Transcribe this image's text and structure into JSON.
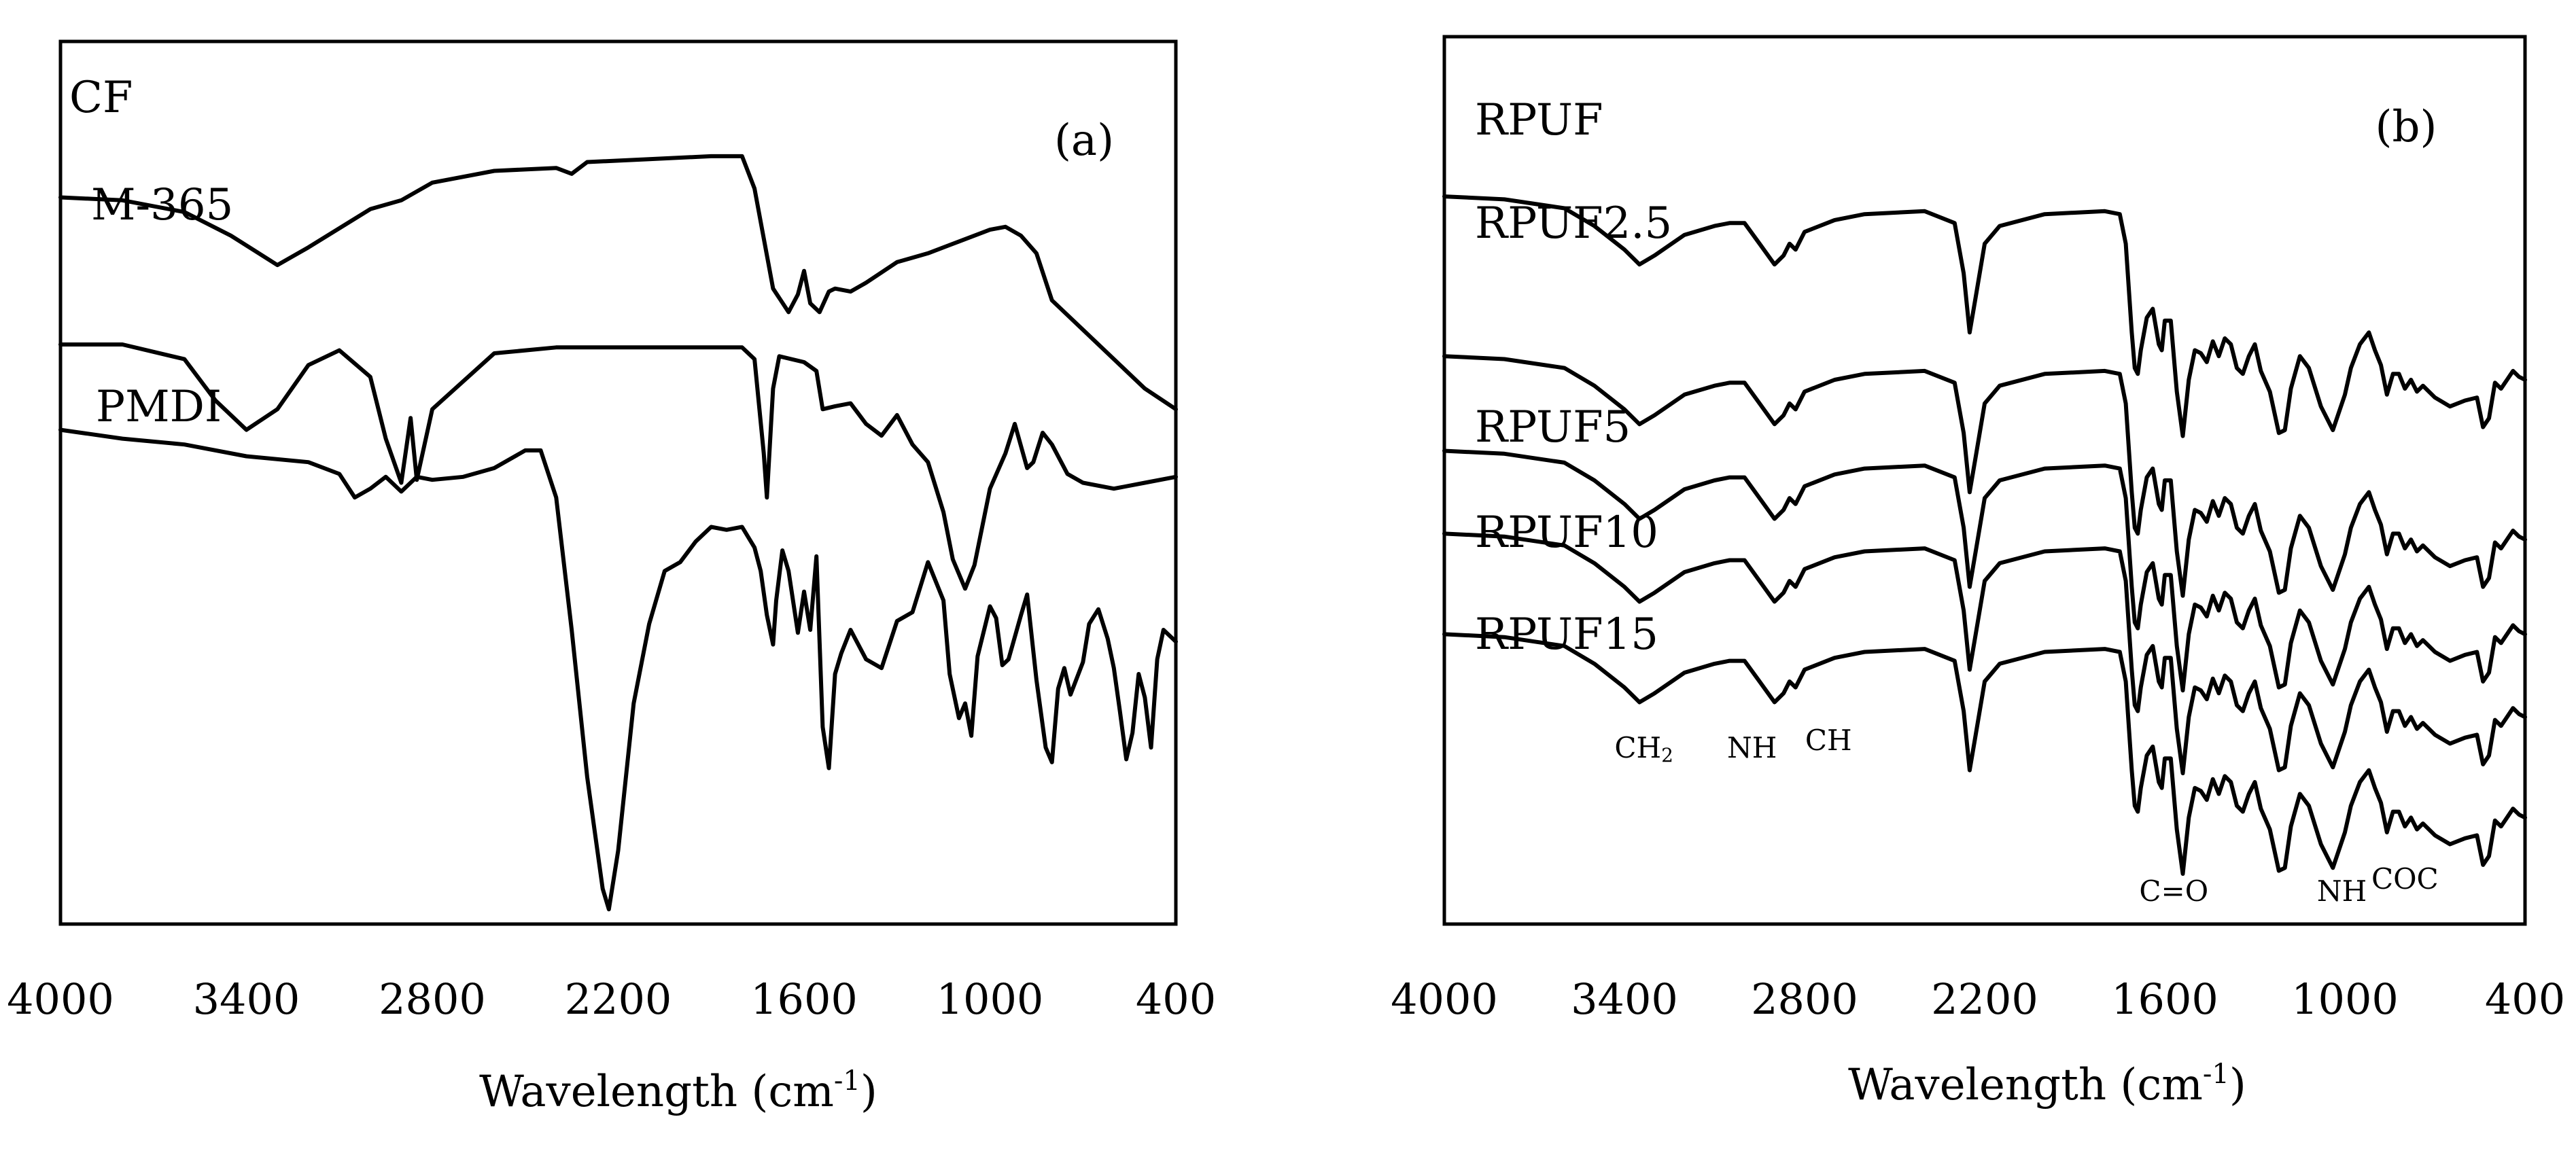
{
  "chart_data": [
    {
      "type": "line",
      "panel_label": "(a)",
      "xlabel": "Wavelength (cm",
      "xlabel_sup": "-1",
      "xlabel_end": ")",
      "xlim": [
        4000,
        400
      ],
      "xticks": [
        "4000",
        "3400",
        "2800",
        "2200",
        "1600",
        "1000",
        "400"
      ],
      "y_axis_ticks": false,
      "grid": false,
      "series": [
        {
          "name": "CF",
          "points": [
            [
              4000,
              53
            ],
            [
              3800,
              54
            ],
            [
              3600,
              58
            ],
            [
              3450,
              66
            ],
            [
              3300,
              76
            ],
            [
              3200,
              70
            ],
            [
              3000,
              57
            ],
            [
              2900,
              54
            ],
            [
              2800,
              48
            ],
            [
              2600,
              44
            ],
            [
              2400,
              43
            ],
            [
              2350,
              45
            ],
            [
              2300,
              41
            ],
            [
              2100,
              40
            ],
            [
              1900,
              39
            ],
            [
              1800,
              39
            ],
            [
              1760,
              50
            ],
            [
              1700,
              84
            ],
            [
              1650,
              92
            ],
            [
              1620,
              86
            ],
            [
              1600,
              78
            ],
            [
              1580,
              89
            ],
            [
              1550,
              92
            ],
            [
              1520,
              85
            ],
            [
              1500,
              84
            ],
            [
              1450,
              85
            ],
            [
              1400,
              82
            ],
            [
              1300,
              75
            ],
            [
              1200,
              72
            ],
            [
              1100,
              68
            ],
            [
              1000,
              64
            ],
            [
              950,
              63
            ],
            [
              900,
              66
            ],
            [
              850,
              72
            ],
            [
              800,
              88
            ],
            [
              700,
              98
            ],
            [
              600,
              108
            ],
            [
              500,
              118
            ],
            [
              400,
              125
            ]
          ]
        },
        {
          "name": "M-365",
          "points": [
            [
              4000,
              103
            ],
            [
              3800,
              103
            ],
            [
              3600,
              108
            ],
            [
              3500,
              122
            ],
            [
              3400,
              132
            ],
            [
              3300,
              125
            ],
            [
              3200,
              110
            ],
            [
              3100,
              105
            ],
            [
              3000,
              114
            ],
            [
              2950,
              135
            ],
            [
              2900,
              150
            ],
            [
              2870,
              128
            ],
            [
              2850,
              149
            ],
            [
              2800,
              125
            ],
            [
              2600,
              106
            ],
            [
              2400,
              104
            ],
            [
              2200,
              104
            ],
            [
              2000,
              104
            ],
            [
              1800,
              104
            ],
            [
              1760,
              108
            ],
            [
              1730,
              140
            ],
            [
              1720,
              155
            ],
            [
              1700,
              118
            ],
            [
              1680,
              107
            ],
            [
              1600,
              109
            ],
            [
              1560,
              112
            ],
            [
              1540,
              125
            ],
            [
              1500,
              124
            ],
            [
              1450,
              123
            ],
            [
              1400,
              130
            ],
            [
              1350,
              134
            ],
            [
              1300,
              127
            ],
            [
              1250,
              137
            ],
            [
              1200,
              143
            ],
            [
              1150,
              160
            ],
            [
              1120,
              176
            ],
            [
              1080,
              186
            ],
            [
              1050,
              178
            ],
            [
              1000,
              152
            ],
            [
              950,
              140
            ],
            [
              920,
              130
            ],
            [
              880,
              145
            ],
            [
              860,
              143
            ],
            [
              830,
              133
            ],
            [
              800,
              137
            ],
            [
              750,
              147
            ],
            [
              700,
              150
            ],
            [
              600,
              152
            ],
            [
              500,
              150
            ],
            [
              400,
              148
            ]
          ]
        },
        {
          "name": "PMDI",
          "points": [
            [
              4000,
              132
            ],
            [
              3800,
              135
            ],
            [
              3600,
              137
            ],
            [
              3400,
              141
            ],
            [
              3200,
              143
            ],
            [
              3100,
              147
            ],
            [
              3050,
              155
            ],
            [
              3000,
              152
            ],
            [
              2950,
              148
            ],
            [
              2900,
              153
            ],
            [
              2850,
              148
            ],
            [
              2800,
              149
            ],
            [
              2700,
              148
            ],
            [
              2600,
              145
            ],
            [
              2500,
              139
            ],
            [
              2450,
              139
            ],
            [
              2400,
              155
            ],
            [
              2350,
              200
            ],
            [
              2300,
              250
            ],
            [
              2250,
              288
            ],
            [
              2230,
              295
            ],
            [
              2200,
              275
            ],
            [
              2150,
              225
            ],
            [
              2100,
              198
            ],
            [
              2050,
              180
            ],
            [
              2000,
              177
            ],
            [
              1950,
              170
            ],
            [
              1900,
              165
            ],
            [
              1850,
              166
            ],
            [
              1800,
              165
            ],
            [
              1760,
              172
            ],
            [
              1740,
              180
            ],
            [
              1720,
              195
            ],
            [
              1700,
              205
            ],
            [
              1690,
              190
            ],
            [
              1670,
              173
            ],
            [
              1650,
              180
            ],
            [
              1620,
              201
            ],
            [
              1600,
              187
            ],
            [
              1580,
              200
            ],
            [
              1560,
              175
            ],
            [
              1540,
              233
            ],
            [
              1520,
              247
            ],
            [
              1500,
              215
            ],
            [
              1480,
              208
            ],
            [
              1450,
              200
            ],
            [
              1400,
              210
            ],
            [
              1350,
              213
            ],
            [
              1300,
              197
            ],
            [
              1250,
              194
            ],
            [
              1200,
              177
            ],
            [
              1150,
              190
            ],
            [
              1130,
              215
            ],
            [
              1100,
              230
            ],
            [
              1080,
              225
            ],
            [
              1060,
              236
            ],
            [
              1040,
              209
            ],
            [
              1000,
              192
            ],
            [
              980,
              196
            ],
            [
              960,
              212
            ],
            [
              940,
              210
            ],
            [
              900,
              195
            ],
            [
              880,
              188
            ],
            [
              850,
              217
            ],
            [
              820,
              240
            ],
            [
              800,
              245
            ],
            [
              780,
              220
            ],
            [
              760,
              213
            ],
            [
              740,
              222
            ],
            [
              700,
              211
            ],
            [
              680,
              198
            ],
            [
              650,
              193
            ],
            [
              620,
              203
            ],
            [
              600,
              213
            ],
            [
              580,
              228
            ],
            [
              560,
              244
            ],
            [
              540,
              235
            ],
            [
              520,
              215
            ],
            [
              500,
              223
            ],
            [
              480,
              240
            ],
            [
              460,
              210
            ],
            [
              440,
              200
            ],
            [
              420,
              202
            ],
            [
              400,
              204
            ]
          ]
        }
      ]
    },
    {
      "type": "line",
      "panel_label": "(b)",
      "xlabel": "Wavelength (cm",
      "xlabel_sup": "-1",
      "xlabel_end": ")",
      "xlim": [
        4000,
        400
      ],
      "xticks": [
        "4000",
        "3400",
        "2800",
        "2200",
        "1600",
        "1000",
        "400"
      ],
      "y_axis_ticks": false,
      "grid": false,
      "annotations": [
        {
          "text": "CH",
          "sub": "2",
          "x": 3335
        },
        {
          "text": "NH",
          "x": 2975
        },
        {
          "text": "CH",
          "x": 2720
        },
        {
          "text": "C=O",
          "x": 1570
        },
        {
          "text": "NH",
          "x": 1010
        },
        {
          "text": "COC",
          "x": 800
        }
      ],
      "series": [
        {
          "name": "RPUF",
          "label": "RPUF"
        },
        {
          "name": "RPUF2.5",
          "label": "RPUF2.5"
        },
        {
          "name": "RPUF5",
          "label": "RPUF5"
        },
        {
          "name": "RPUF10",
          "label": "RPUF10"
        },
        {
          "name": "RPUF15",
          "label": "RPUF15"
        }
      ],
      "common_spectrum": [
        [
          4000,
          54
        ],
        [
          3800,
          55
        ],
        [
          3600,
          58
        ],
        [
          3500,
          64
        ],
        [
          3400,
          72
        ],
        [
          3350,
          77
        ],
        [
          3300,
          74
        ],
        [
          3200,
          67
        ],
        [
          3100,
          64
        ],
        [
          3050,
          63
        ],
        [
          3000,
          63
        ],
        [
          2950,
          70
        ],
        [
          2900,
          77
        ],
        [
          2870,
          74
        ],
        [
          2850,
          70
        ],
        [
          2830,
          72
        ],
        [
          2800,
          66
        ],
        [
          2700,
          62
        ],
        [
          2600,
          60
        ],
        [
          2400,
          59
        ],
        [
          2300,
          63
        ],
        [
          2270,
          80
        ],
        [
          2250,
          100
        ],
        [
          2230,
          88
        ],
        [
          2200,
          70
        ],
        [
          2150,
          64
        ],
        [
          2000,
          60
        ],
        [
          1800,
          59
        ],
        [
          1750,
          60
        ],
        [
          1730,
          70
        ],
        [
          1710,
          100
        ],
        [
          1700,
          112
        ],
        [
          1690,
          114
        ],
        [
          1680,
          106
        ],
        [
          1660,
          95
        ],
        [
          1640,
          92
        ],
        [
          1620,
          104
        ],
        [
          1610,
          106
        ],
        [
          1600,
          96
        ],
        [
          1580,
          96
        ],
        [
          1560,
          120
        ],
        [
          1540,
          135
        ],
        [
          1520,
          116
        ],
        [
          1500,
          106
        ],
        [
          1480,
          107
        ],
        [
          1460,
          110
        ],
        [
          1440,
          103
        ],
        [
          1420,
          108
        ],
        [
          1400,
          102
        ],
        [
          1380,
          104
        ],
        [
          1360,
          112
        ],
        [
          1340,
          114
        ],
        [
          1320,
          108
        ],
        [
          1300,
          104
        ],
        [
          1280,
          113
        ],
        [
          1250,
          120
        ],
        [
          1220,
          134
        ],
        [
          1200,
          133
        ],
        [
          1180,
          119
        ],
        [
          1150,
          108
        ],
        [
          1120,
          112
        ],
        [
          1080,
          125
        ],
        [
          1040,
          133
        ],
        [
          1000,
          121
        ],
        [
          980,
          112
        ],
        [
          950,
          104
        ],
        [
          920,
          100
        ],
        [
          900,
          106
        ],
        [
          880,
          111
        ],
        [
          860,
          121
        ],
        [
          840,
          114
        ],
        [
          820,
          114
        ],
        [
          800,
          119
        ],
        [
          780,
          116
        ],
        [
          760,
          120
        ],
        [
          740,
          118
        ],
        [
          700,
          122
        ],
        [
          650,
          125
        ],
        [
          600,
          123
        ],
        [
          560,
          122
        ],
        [
          540,
          132
        ],
        [
          520,
          129
        ],
        [
          500,
          117
        ],
        [
          480,
          119
        ],
        [
          460,
          116
        ],
        [
          440,
          113
        ],
        [
          420,
          115
        ],
        [
          400,
          116
        ]
      ]
    }
  ]
}
